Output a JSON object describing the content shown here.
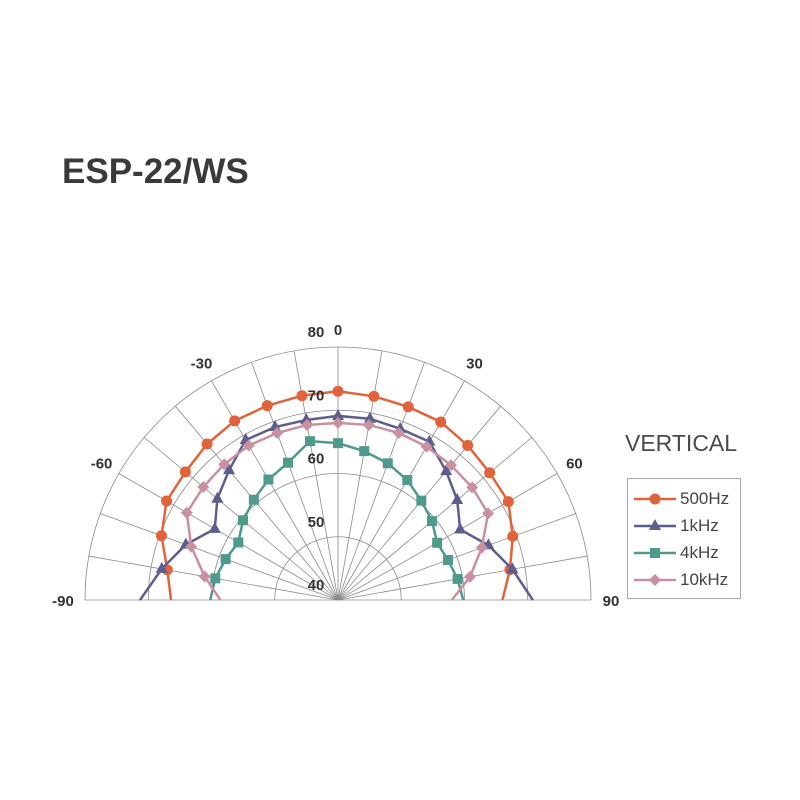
{
  "chart_data": {
    "type": "polar-line",
    "title": "ESP-22/WS",
    "subtitle": "VERTICAL",
    "angles": [
      -90,
      -80,
      -70,
      -60,
      -50,
      -40,
      -30,
      -20,
      -10,
      0,
      10,
      20,
      30,
      40,
      50,
      60,
      70,
      80,
      90
    ],
    "angle_tick_labels": [
      "-90",
      "-60",
      "-30",
      "0",
      "30",
      "60",
      "90"
    ],
    "angle_ticks": [
      -90,
      -60,
      -30,
      0,
      30,
      60,
      90
    ],
    "radial_range": [
      40,
      80
    ],
    "radial_ticks": [
      40,
      50,
      60,
      70,
      80
    ],
    "radial_tick_labels": [
      "40",
      "50",
      "60",
      "70",
      "80"
    ],
    "grid": true,
    "legend_position": "right",
    "series": [
      {
        "name": "500Hz",
        "color": "#e0633c",
        "marker": "circle",
        "values": [
          66.4,
          67.4,
          69.7,
          71.3,
          71.5,
          72.2,
          72.7,
          72.7,
          72.8,
          73.0,
          72.7,
          72.5,
          72.5,
          71.9,
          71.3,
          71.1,
          69.4,
          67.6,
          66.0
        ]
      },
      {
        "name": "1kHz",
        "color": "#5c5e8e",
        "marker": "triangle",
        "values": [
          71.3,
          68.3,
          65.6,
          62.5,
          64.9,
          66.8,
          69.2,
          69.1,
          68.9,
          69.1,
          69.1,
          68.8,
          68.9,
          66.6,
          64.6,
          62.3,
          65.3,
          68.0,
          70.8
        ]
      },
      {
        "name": "4kHz",
        "color": "#4f9a8d",
        "marker": "square",
        "values": [
          60.2,
          59.7,
          58.9,
          58.2,
          59.6,
          60.7,
          62.0,
          63.1,
          65.5,
          64.8,
          63.9,
          63.0,
          61.9,
          60.5,
          59.4,
          58.1,
          58.5,
          59.2,
          59.8
        ]
      },
      {
        "name": "10kHz",
        "color": "#c9909f",
        "marker": "diamond",
        "values": [
          58.6,
          61.4,
          64.7,
          67.6,
          67.8,
          68.0,
          68.2,
          68.1,
          68.1,
          68.0,
          68.1,
          68.1,
          68.0,
          67.8,
          67.7,
          67.4,
          64.2,
          61.2,
          58.0
        ]
      }
    ]
  }
}
